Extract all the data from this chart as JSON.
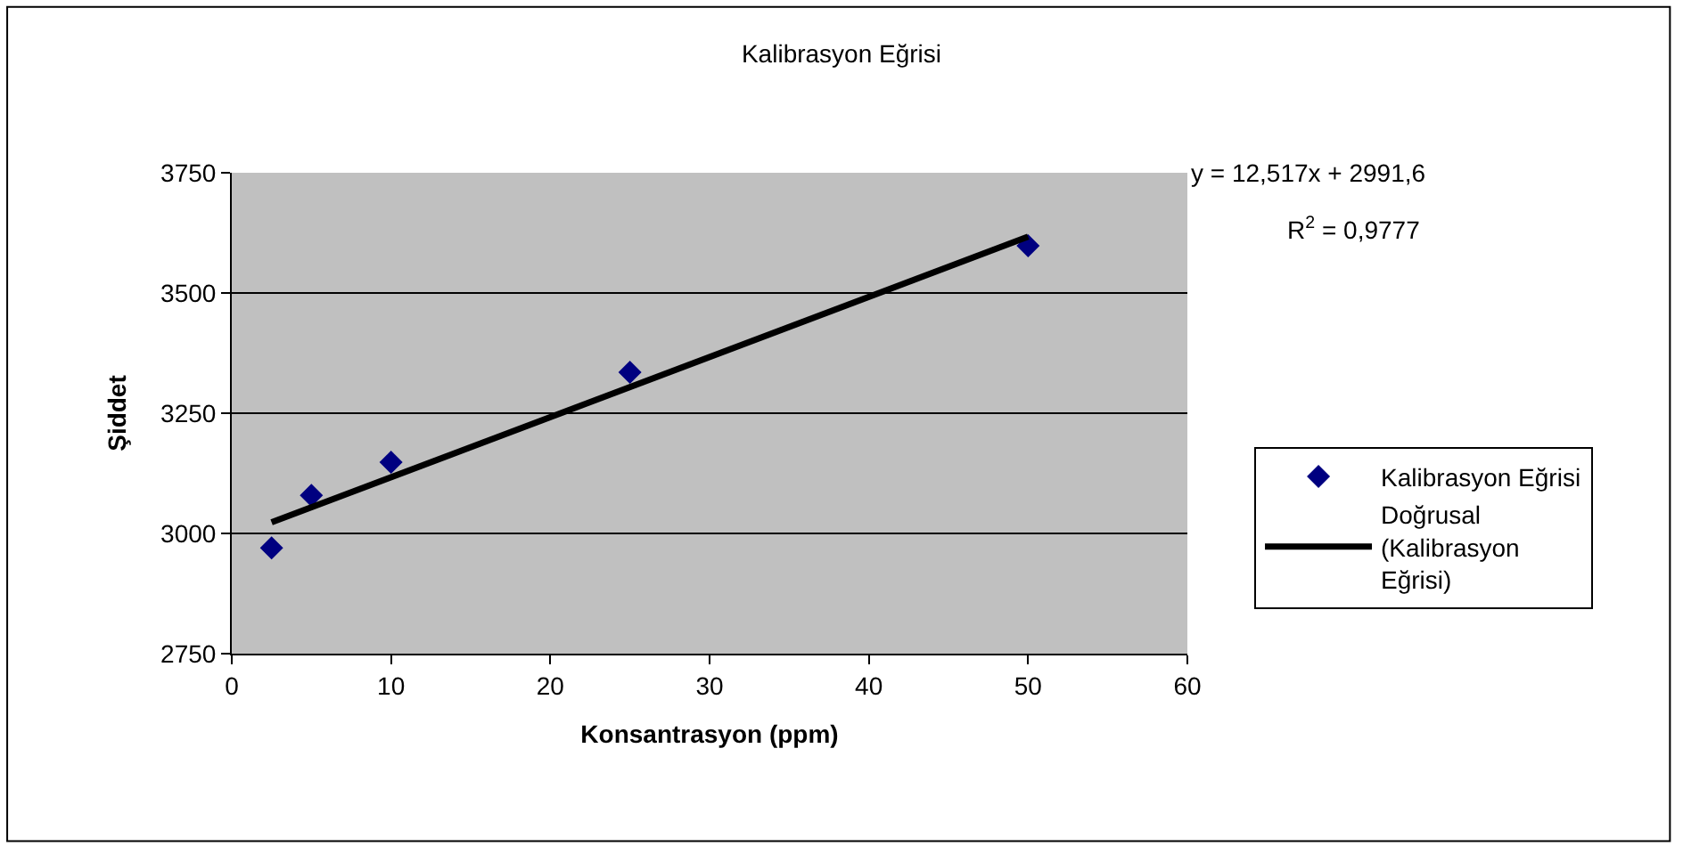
{
  "chart_data": {
    "type": "scatter",
    "title": "Kalibrasyon Eğrisi",
    "xlabel": "Konsantrasyon (ppm)",
    "ylabel": "Şiddet",
    "x": [
      2.5,
      5,
      10,
      25,
      50
    ],
    "series": [
      {
        "name": "Kalibrasyon Eğrisi",
        "color": "#000080",
        "marker": "diamond",
        "values": [
          2970,
          3079,
          3148,
          3335,
          3598
        ]
      },
      {
        "name": "Doğrusal (Kalibrasyon Eğrisi)",
        "type": "line",
        "marker": "none",
        "color": "#000000",
        "x": [
          2.5,
          50
        ],
        "values": [
          3023,
          3617
        ]
      }
    ],
    "annotations": [
      "y = 12,517x + 2991,6",
      "R$^{2}$ = 0,9777"
    ],
    "xlim": [
      0,
      60
    ],
    "xticks": [
      0,
      10,
      20,
      30,
      40,
      50,
      60
    ],
    "ylim": [
      2750,
      3750
    ],
    "yticks": [
      2750,
      3000,
      3250,
      3500,
      3750
    ],
    "grid": "y",
    "legend": "right",
    "line_style": "solid"
  }
}
